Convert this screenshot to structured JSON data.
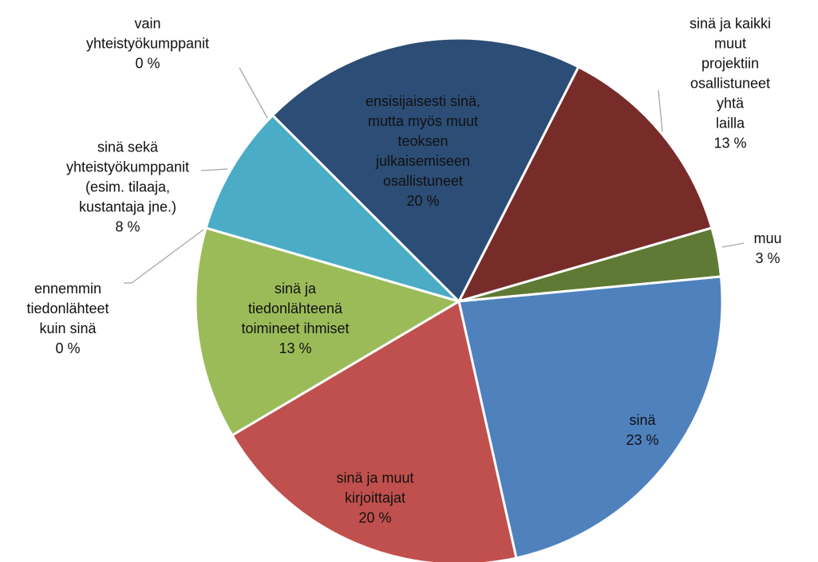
{
  "chart_data": {
    "type": "pie",
    "categories": [
      "sinä ja kaikki muut\nprojektiin\nosallistuneet yhtä\nlailla",
      "muu",
      "sinä",
      "sinä ja muut\nkirjoittajat",
      "sinä ja\ntiedonlähteenä\ntoimineet ihmiset",
      "ennemmin\ntiedonlähteet\nkuin sinä",
      "sinä sekä\nyhteistyökumppanit\n(esim. tilaaja,\nkustantaja jne.)",
      "vain\nyhteistyökumppanit",
      "ensisijaisesti sinä,\nmutta myös muut\nteoksen\njulkaisemiseen\nosallistuneet"
    ],
    "values": [
      13,
      3,
      23,
      20,
      13,
      0,
      8,
      0,
      20
    ],
    "value_labels": [
      "13 %",
      "3 %",
      "23 %",
      "20 %",
      "13 %",
      "0 %",
      "8 %",
      "0 %",
      "20 %"
    ],
    "colors": [
      "#772C2A",
      "#5E7A34",
      "#4F81BD",
      "#C0504D",
      "#9BBB59",
      null,
      "#4BACC6",
      null,
      "#2C4D75"
    ]
  }
}
